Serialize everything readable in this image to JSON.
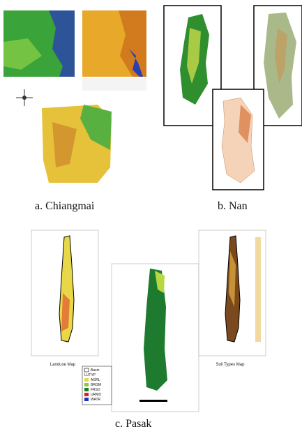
{
  "panels": [
    {
      "caption": "a. Chiangmai"
    },
    {
      "caption": "b. Nan"
    },
    {
      "caption": "c. Pasak",
      "maps": [
        {
          "title": "Landuse Map",
          "legend": [
            "Basin",
            "LUTYP",
            "AGRL",
            "BRGM",
            "FRSD",
            "URMD",
            "WATR"
          ]
        },
        {
          "title": "Soil Types Map"
        }
      ]
    }
  ]
}
